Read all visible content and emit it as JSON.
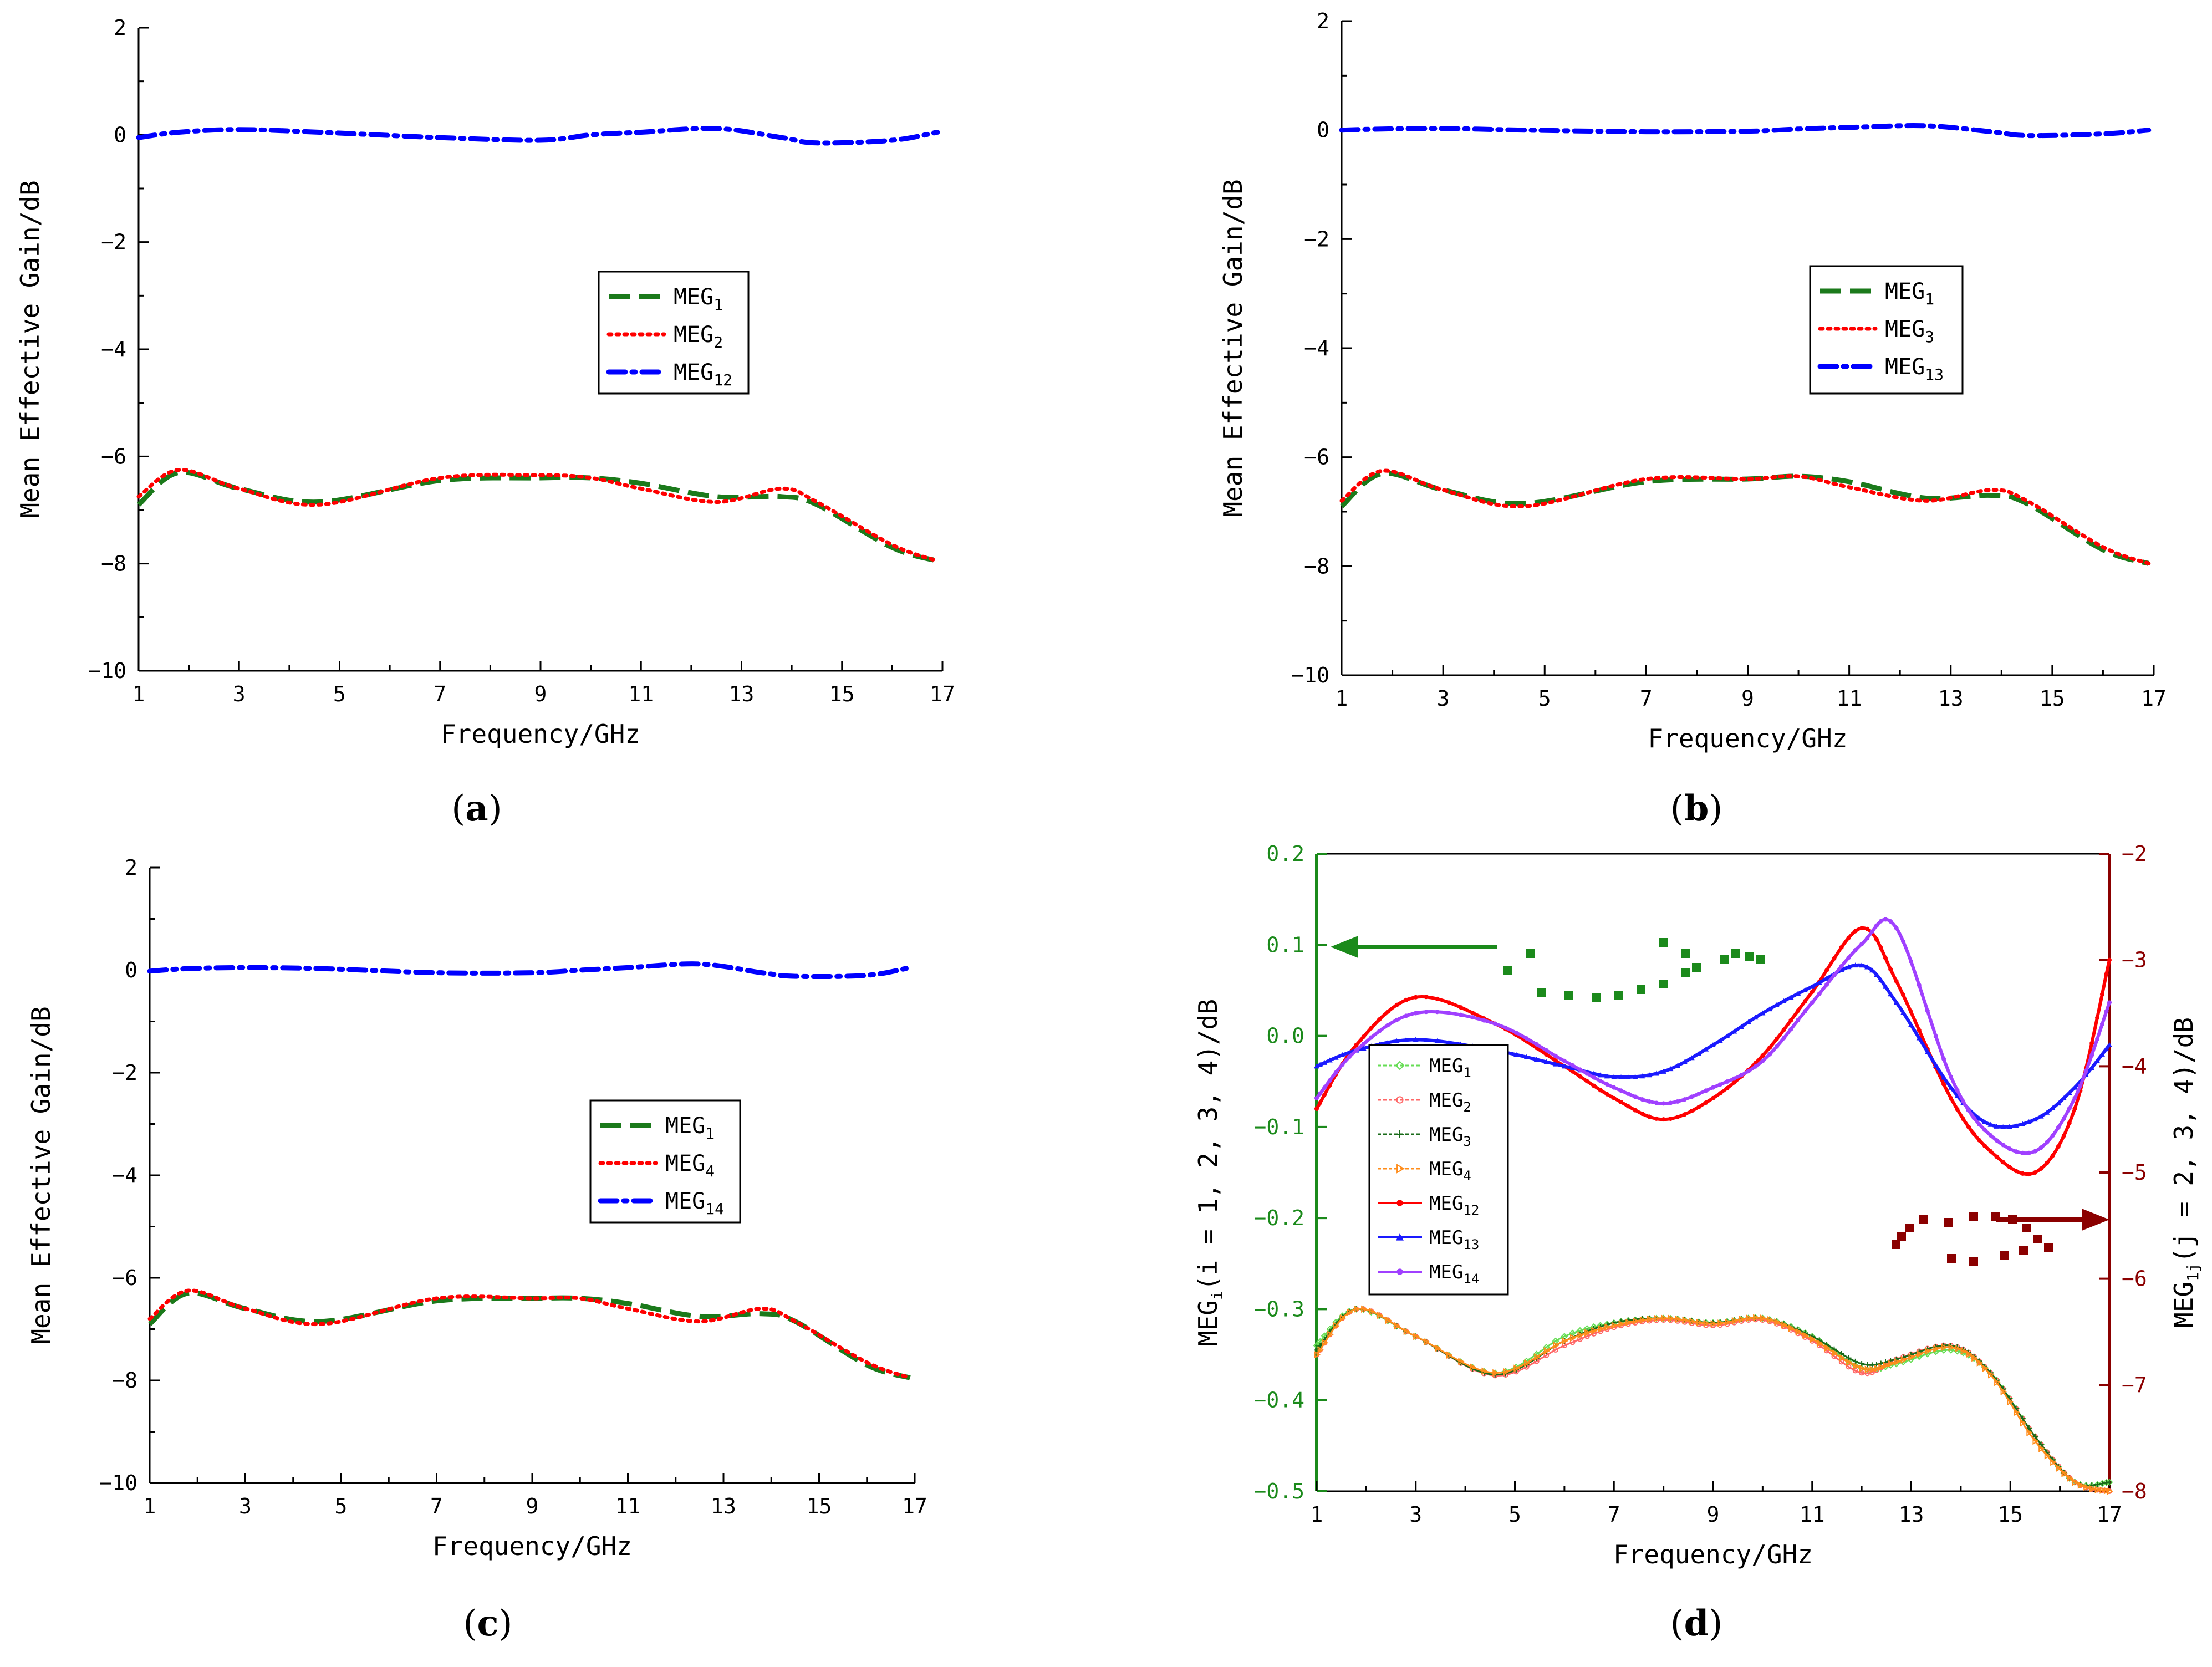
{
  "chart_data": [
    {
      "type": "line",
      "panel_label": "a",
      "xlabel": "Frequency/GHz",
      "ylabel": "Mean Effective Gain/dB",
      "xlim": [
        1,
        17
      ],
      "ylim": [
        -10,
        2
      ],
      "xticks": [
        1,
        3,
        5,
        7,
        9,
        11,
        13,
        15,
        17
      ],
      "yticks": [
        -10,
        -8,
        -6,
        -4,
        -2,
        0,
        2
      ],
      "x": [
        1,
        1.8,
        3,
        4.6,
        7,
        9,
        10,
        11,
        12.5,
        13.8,
        14.5,
        16,
        16.9
      ],
      "series": [
        {
          "name": "MEG",
          "sub": "1",
          "color": "#1b7a1b",
          "style": "dash",
          "values": [
            -6.9,
            -6.3,
            -6.6,
            -6.85,
            -6.45,
            -6.4,
            -6.4,
            -6.5,
            -6.75,
            -6.75,
            -6.9,
            -7.7,
            -7.95
          ]
        },
        {
          "name": "MEG",
          "sub": "2",
          "color": "#ff0000",
          "style": "dot",
          "values": [
            -6.75,
            -6.25,
            -6.6,
            -6.9,
            -6.4,
            -6.35,
            -6.4,
            -6.6,
            -6.85,
            -6.6,
            -6.85,
            -7.65,
            -7.95
          ]
        },
        {
          "name": "MEG",
          "sub": "12",
          "color": "#0000ff",
          "style": "dashdot",
          "values": [
            -0.05,
            0.05,
            0.1,
            0.05,
            -0.05,
            -0.1,
            0,
            0.05,
            0.12,
            -0.05,
            -0.15,
            -0.1,
            0.05
          ]
        }
      ]
    },
    {
      "type": "line",
      "panel_label": "b",
      "xlabel": "Frequency/GHz",
      "ylabel": "Mean Effective Gain/dB",
      "xlim": [
        1,
        17
      ],
      "ylim": [
        -10,
        2
      ],
      "xticks": [
        1,
        3,
        5,
        7,
        9,
        11,
        13,
        15,
        17
      ],
      "yticks": [
        -10,
        -8,
        -6,
        -4,
        -2,
        0,
        2
      ],
      "x": [
        1,
        1.8,
        3,
        4.6,
        7,
        9,
        10,
        11,
        12.5,
        13.8,
        14.5,
        16,
        16.9
      ],
      "series": [
        {
          "name": "MEG",
          "sub": "1",
          "color": "#1b7a1b",
          "style": "dash",
          "values": [
            -6.9,
            -6.3,
            -6.6,
            -6.85,
            -6.45,
            -6.4,
            -6.35,
            -6.45,
            -6.75,
            -6.7,
            -6.85,
            -7.7,
            -7.95
          ]
        },
        {
          "name": "MEG",
          "sub": "3",
          "color": "#ff0000",
          "style": "dot",
          "values": [
            -6.8,
            -6.25,
            -6.6,
            -6.9,
            -6.4,
            -6.4,
            -6.35,
            -6.55,
            -6.8,
            -6.6,
            -6.8,
            -7.65,
            -7.95
          ]
        },
        {
          "name": "MEG",
          "sub": "13",
          "color": "#0000ff",
          "style": "dashdot",
          "values": [
            0,
            0.02,
            0.03,
            0,
            -0.03,
            -0.02,
            0.02,
            0.05,
            0.08,
            -0.03,
            -0.1,
            -0.07,
            0
          ]
        }
      ]
    },
    {
      "type": "line",
      "panel_label": "c",
      "xlabel": "Frequency/GHz",
      "ylabel": "Mean Effective Gain/dB",
      "xlim": [
        1,
        17
      ],
      "ylim": [
        -10,
        2
      ],
      "xticks": [
        1,
        3,
        5,
        7,
        9,
        11,
        13,
        15,
        17
      ],
      "yticks": [
        -10,
        -8,
        -6,
        -4,
        -2,
        0,
        2
      ],
      "x": [
        1,
        1.8,
        3,
        4.6,
        7,
        9,
        10,
        11,
        12.5,
        13.8,
        14.5,
        16,
        16.9
      ],
      "series": [
        {
          "name": "MEG",
          "sub": "1",
          "color": "#1b7a1b",
          "style": "dash",
          "values": [
            -6.9,
            -6.3,
            -6.6,
            -6.85,
            -6.45,
            -6.4,
            -6.4,
            -6.5,
            -6.75,
            -6.7,
            -6.85,
            -7.7,
            -7.95
          ]
        },
        {
          "name": "MEG",
          "sub": "4",
          "color": "#ff0000",
          "style": "dot",
          "values": [
            -6.8,
            -6.25,
            -6.6,
            -6.9,
            -6.4,
            -6.4,
            -6.4,
            -6.6,
            -6.85,
            -6.6,
            -6.85,
            -7.65,
            -7.95
          ]
        },
        {
          "name": "MEG",
          "sub": "14",
          "color": "#0000ff",
          "style": "dashdot",
          "values": [
            -0.02,
            0.03,
            0.05,
            0.03,
            -0.05,
            -0.05,
            0,
            0.05,
            0.12,
            -0.05,
            -0.12,
            -0.1,
            0.05
          ]
        }
      ]
    },
    {
      "type": "line",
      "panel_label": "d",
      "xlabel": "Frequency/GHz",
      "ylabel_left": "MEG",
      "ylabel_left_sub": "i",
      "ylabel_left_tail": "(i = 1, 2, 3, 4)/dB",
      "ylabel_right": "MEG",
      "ylabel_right_sub": "1j",
      "ylabel_right_tail": "(j = 2, 3, 4)/dB",
      "xlim": [
        1,
        17
      ],
      "ylim_left": [
        -0.5,
        0.2
      ],
      "ylim_right": [
        -8,
        -2
      ],
      "xticks": [
        1,
        3,
        5,
        7,
        9,
        11,
        13,
        15,
        17
      ],
      "yticks_left": [
        "-0.5",
        "-0.4",
        "-0.3",
        "-0.2",
        "-0.1",
        "0.0",
        "0.1",
        "0.2"
      ],
      "yticks_right": [
        "-8",
        "-7",
        "-6",
        "-5",
        "-4",
        "-3",
        "-2"
      ],
      "left_color": "#1b8a1b",
      "right_color": "#8b0000",
      "x": [
        1,
        1.8,
        3,
        4.6,
        6,
        7,
        8,
        9,
        10,
        11,
        12,
        12.7,
        13.8,
        14.6,
        15.5,
        16.3,
        17
      ],
      "series": [
        {
          "name": "MEG",
          "sub": "1",
          "axis": "left",
          "color": "#66dd55",
          "marker": "diamond",
          "values": [
            -0.34,
            -0.3,
            -0.33,
            -0.37,
            -0.33,
            -0.315,
            -0.31,
            -0.315,
            -0.31,
            -0.33,
            -0.365,
            -0.36,
            -0.345,
            -0.37,
            -0.44,
            -0.49,
            -0.49
          ]
        },
        {
          "name": "MEG",
          "sub": "2",
          "axis": "left",
          "color": "#ff6666",
          "marker": "circle",
          "values": [
            -0.35,
            -0.3,
            -0.33,
            -0.373,
            -0.34,
            -0.32,
            -0.312,
            -0.318,
            -0.312,
            -0.335,
            -0.37,
            -0.355,
            -0.34,
            -0.37,
            -0.44,
            -0.49,
            -0.5
          ]
        },
        {
          "name": "MEG",
          "sub": "3",
          "axis": "left",
          "color": "#1a6b1a",
          "marker": "star",
          "values": [
            -0.345,
            -0.3,
            -0.33,
            -0.372,
            -0.335,
            -0.315,
            -0.31,
            -0.315,
            -0.31,
            -0.33,
            -0.36,
            -0.355,
            -0.34,
            -0.37,
            -0.44,
            -0.49,
            -0.49
          ]
        },
        {
          "name": "MEG",
          "sub": "4",
          "axis": "left",
          "color": "#ff8c1a",
          "marker": "triangle-right",
          "values": [
            -0.35,
            -0.3,
            -0.33,
            -0.37,
            -0.335,
            -0.318,
            -0.31,
            -0.316,
            -0.31,
            -0.333,
            -0.365,
            -0.358,
            -0.342,
            -0.372,
            -0.445,
            -0.49,
            -0.5
          ]
        },
        {
          "name": "MEG",
          "sub": "12",
          "axis": "right",
          "color": "#ff0000",
          "marker": "circle-filled",
          "values": [
            -4.4,
            -3.8,
            -3.35,
            -3.6,
            -4.0,
            -4.3,
            -4.5,
            -4.3,
            -3.9,
            -3.3,
            -2.7,
            -3.2,
            -4.3,
            -4.8,
            -5.0,
            -4.4,
            -3.0
          ]
        },
        {
          "name": "MEG",
          "sub": "13",
          "axis": "right",
          "color": "#1a1aff",
          "marker": "triangle",
          "values": [
            -4.0,
            -3.85,
            -3.75,
            -3.85,
            -4.0,
            -4.1,
            -4.05,
            -3.8,
            -3.5,
            -3.25,
            -3.05,
            -3.4,
            -4.2,
            -4.55,
            -4.5,
            -4.2,
            -3.8
          ]
        },
        {
          "name": "MEG",
          "sub": "14",
          "axis": "right",
          "color": "#a040ff",
          "marker": "circle-filled",
          "values": [
            -4.3,
            -3.85,
            -3.5,
            -3.6,
            -3.95,
            -4.2,
            -4.35,
            -4.2,
            -3.95,
            -3.4,
            -2.85,
            -2.7,
            -4.1,
            -4.65,
            -4.8,
            -4.3,
            -3.4
          ]
        }
      ]
    }
  ]
}
